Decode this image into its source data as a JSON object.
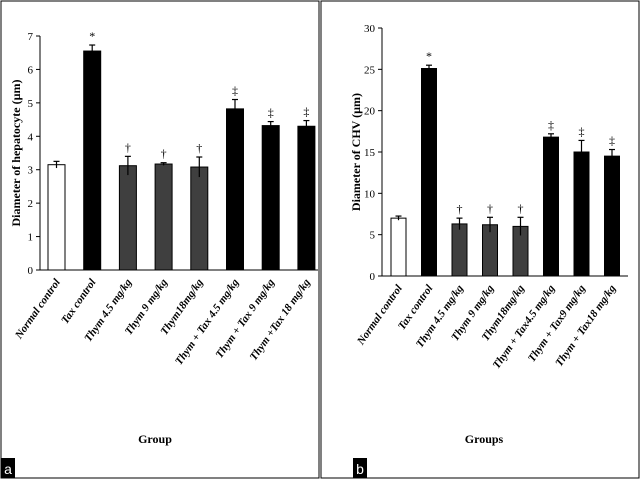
{
  "chart_data": [
    {
      "panel_label": "a",
      "type": "bar",
      "categories": [
        "Normal control",
        "Tax control",
        "Thym 4.5 mg/kg",
        "Thym 9 mg/kg",
        "Thym18mg/kg",
        "Thym + Tax 4.5 mg/kg",
        "Thym + Tax 9 mg/kg",
        "Thym +Tax 18 mg/kg"
      ],
      "values": [
        3.15,
        6.55,
        3.12,
        3.17,
        3.08,
        4.82,
        4.32,
        4.3
      ],
      "errors": [
        0.1,
        0.18,
        0.28,
        0.04,
        0.3,
        0.28,
        0.12,
        0.17
      ],
      "bar_colors": [
        "#ffffff",
        "#000000",
        "#3f3f3f",
        "#3f3f3f",
        "#3f3f3f",
        "#000000",
        "#000000",
        "#000000"
      ],
      "markers": [
        "",
        "*",
        "†",
        "†",
        "†",
        "‡",
        "‡",
        "‡"
      ],
      "ylabel": "Diameter of hepatocyte (µm)",
      "xlabel": "Group",
      "ylim": [
        0,
        7
      ],
      "yticks": [
        0,
        1,
        2,
        3,
        4,
        5,
        6,
        7
      ],
      "grid": false,
      "legend": "none"
    },
    {
      "panel_label": "b",
      "type": "bar",
      "categories": [
        "Normal control",
        "Tax control",
        "Thym 4.5 mg/kg",
        "Thym 9 mg/kg",
        "Thym18mg/kg",
        "Thym + Tax4.5 mg/kg",
        "Thym + Tax9 mg/kg",
        "Thym + Tax18 mg/kg"
      ],
      "values": [
        7.0,
        25.1,
        6.3,
        6.2,
        6.0,
        16.8,
        15.0,
        14.5
      ],
      "errors": [
        0.25,
        0.4,
        0.7,
        0.9,
        1.1,
        0.4,
        1.4,
        0.8
      ],
      "bar_colors": [
        "#ffffff",
        "#000000",
        "#3f3f3f",
        "#3f3f3f",
        "#3f3f3f",
        "#000000",
        "#000000",
        "#000000"
      ],
      "markers": [
        "",
        "*",
        "†",
        "†",
        "†",
        "‡",
        "‡",
        "‡"
      ],
      "ylabel": "Diameter of CHV (µm)",
      "xlabel": "Groups",
      "ylim": [
        0,
        30
      ],
      "yticks": [
        0,
        5,
        10,
        15,
        20,
        25,
        30
      ],
      "grid": false,
      "legend": "none"
    }
  ]
}
